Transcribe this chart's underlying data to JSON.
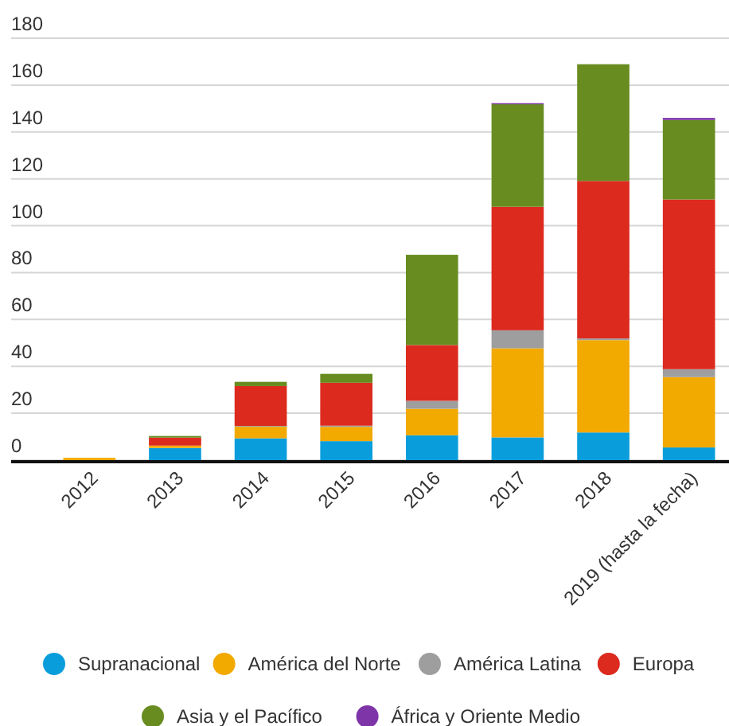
{
  "chart_data": {
    "type": "bar",
    "stacked": true,
    "categories": [
      "2012",
      "2013",
      "2014",
      "2015",
      "2016",
      "2017",
      "2018",
      "2019 (hasta la fecha)"
    ],
    "series": [
      {
        "name": "Supranacional",
        "color": "#0a9ddb",
        "values": [
          0,
          5.2,
          9.3,
          8.1,
          10.6,
          9.7,
          11.8,
          5.4
        ]
      },
      {
        "name": "América del Norte",
        "color": "#f2a900",
        "values": [
          1,
          1,
          5,
          6.1,
          11.3,
          38,
          39.4,
          30
        ]
      },
      {
        "name": "América Latina",
        "color": "#9e9e9e",
        "values": [
          0,
          0,
          0.3,
          0.5,
          3.4,
          7.7,
          0.7,
          3.4
        ]
      },
      {
        "name": "Europa",
        "color": "#dc2a1f",
        "values": [
          0,
          3.4,
          17,
          18.3,
          23.8,
          52.7,
          67.2,
          72.4
        ]
      },
      {
        "name": "Asia y el Pacífico",
        "color": "#688c1f",
        "values": [
          0,
          0.7,
          1.8,
          3.8,
          38.5,
          43.7,
          49.8,
          33.9
        ]
      },
      {
        "name": "África y Oriente Medio",
        "color": "#7e35a8",
        "values": [
          0,
          0,
          0,
          0,
          0,
          0.5,
          0,
          0.9
        ]
      }
    ],
    "ylim": [
      0,
      180
    ],
    "yticks": [
      0,
      20,
      40,
      60,
      80,
      100,
      120,
      140,
      160,
      180
    ],
    "grid": "y",
    "legend": "bottom"
  }
}
